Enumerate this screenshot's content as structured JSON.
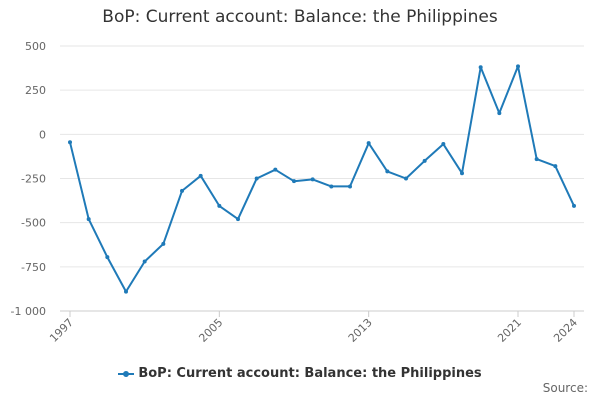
{
  "chart_data": {
    "type": "line",
    "title": "BoP: Current account: Balance: the Philippines",
    "xlabel": "",
    "ylabel": "",
    "ylim": [
      -1000,
      500
    ],
    "yticks": [
      500,
      250,
      0,
      -250,
      -500,
      -750,
      -1000
    ],
    "ytick_labels": [
      "500",
      "250",
      "0",
      "-250",
      "-500",
      "-750",
      "-1 000"
    ],
    "xticks": [
      "1997",
      "2005",
      "2013",
      "2021",
      "2024"
    ],
    "grid": true,
    "legend_position": "bottom",
    "series": [
      {
        "name": "BoP: Current account: Balance: the Philippines",
        "color": "#1f7ab8",
        "x": [
          1997,
          1998,
          1999,
          2000,
          2001,
          2002,
          2003,
          2004,
          2005,
          2006,
          2007,
          2008,
          2009,
          2010,
          2011,
          2012,
          2013,
          2014,
          2015,
          2016,
          2017,
          2018,
          2019,
          2020,
          2021,
          2022,
          2023,
          2024
        ],
        "values": [
          -45,
          -480,
          -695,
          -890,
          -720,
          -620,
          -320,
          -235,
          -405,
          -480,
          -250,
          -200,
          -265,
          -255,
          -295,
          -295,
          -50,
          -210,
          -250,
          -150,
          -55,
          -220,
          380,
          120,
          385,
          -140,
          -180,
          -405
        ]
      }
    ]
  },
  "legend": {
    "label": "BoP: Current account: Balance: the Philippines"
  },
  "source": {
    "label": "Source:"
  }
}
